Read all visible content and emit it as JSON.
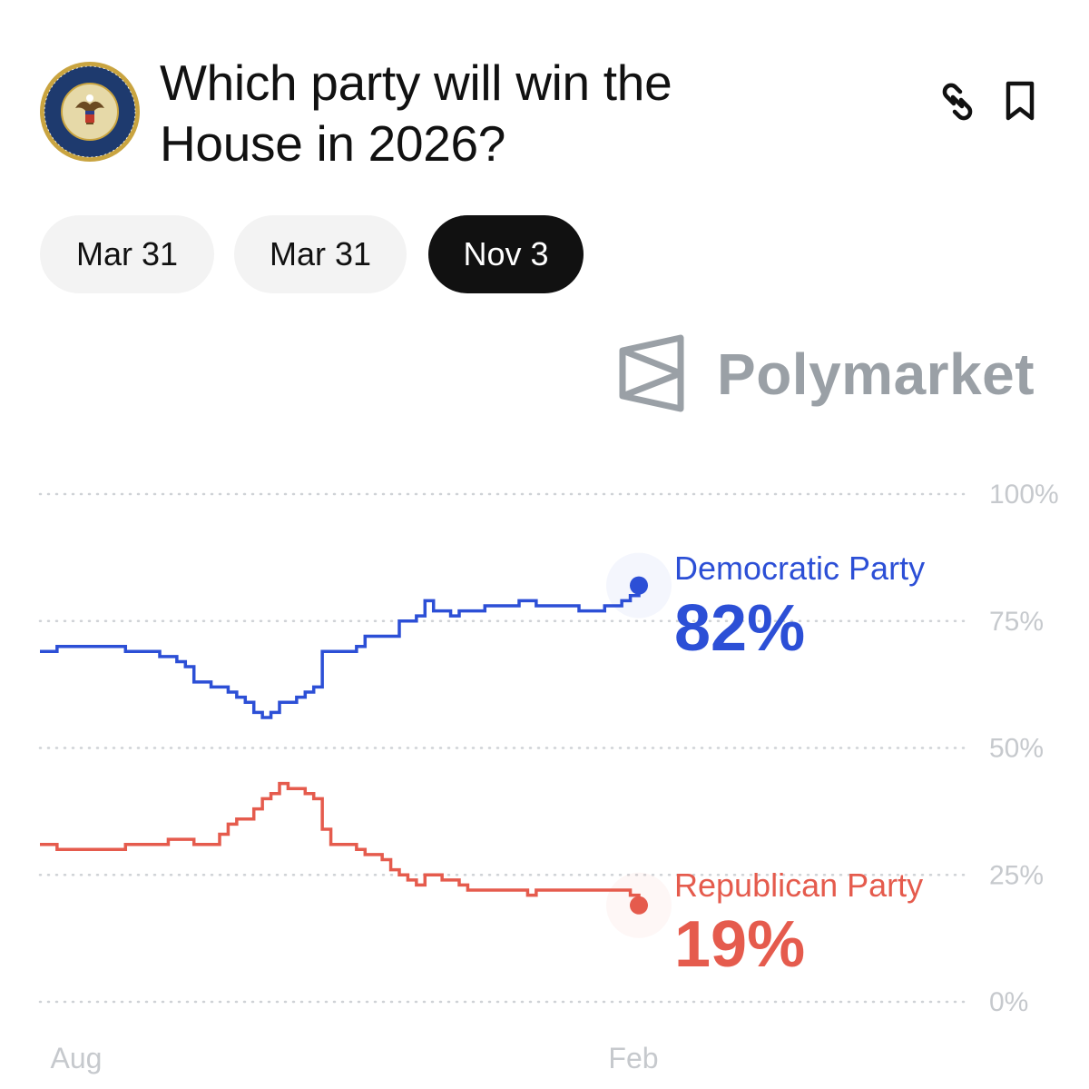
{
  "header": {
    "title_line1": "Which party will win the",
    "title_line2": "House in 2026?",
    "seal_text": "U.S. HOUSE OF REPRESENTATIVES",
    "seal_icon": "us-house-seal-icon",
    "link_icon": "link-icon",
    "bookmark_icon": "bookmark-icon"
  },
  "date_tabs": [
    {
      "label": "Mar 31",
      "active": false
    },
    {
      "label": "Mar 31",
      "active": false
    },
    {
      "label": "Nov 3",
      "active": true
    }
  ],
  "brand": {
    "name": "Polymarket",
    "icon": "polymarket-logo-icon",
    "color": "#9aa0a6"
  },
  "chart_data": {
    "type": "line",
    "x_ticks": [
      "Aug",
      "Feb"
    ],
    "y_ticks": [
      "100%",
      "75%",
      "50%",
      "25%",
      "0%"
    ],
    "ylim": [
      0,
      100
    ],
    "grid": "dotted horizontal",
    "y_axis_side": "right",
    "series": [
      {
        "name": "Democratic Party",
        "label": "82%",
        "color": "#2c4fd6",
        "values": [
          69,
          69,
          70,
          70,
          70,
          70,
          70,
          70,
          70,
          70,
          69,
          69,
          69,
          69,
          68,
          68,
          67,
          66,
          63,
          63,
          62,
          62,
          61,
          60,
          59,
          57,
          56,
          57,
          59,
          59,
          60,
          61,
          62,
          69,
          69,
          69,
          69,
          70,
          72,
          72,
          72,
          72,
          75,
          75,
          76,
          79,
          77,
          77,
          76,
          77,
          77,
          77,
          78,
          78,
          78,
          78,
          79,
          79,
          78,
          78,
          78,
          78,
          78,
          77,
          77,
          77,
          78,
          78,
          79,
          80,
          82
        ]
      },
      {
        "name": "Republican Party",
        "label": "19%",
        "color": "#e55b4d",
        "values": [
          31,
          31,
          30,
          30,
          30,
          30,
          30,
          30,
          30,
          30,
          31,
          31,
          31,
          31,
          31,
          32,
          32,
          32,
          31,
          31,
          31,
          33,
          35,
          36,
          36,
          38,
          40,
          41,
          43,
          42,
          42,
          41,
          40,
          34,
          31,
          31,
          31,
          30,
          29,
          29,
          28,
          26,
          25,
          24,
          23,
          25,
          25,
          24,
          24,
          23,
          22,
          22,
          22,
          22,
          22,
          22,
          22,
          21,
          22,
          22,
          22,
          22,
          22,
          22,
          22,
          22,
          22,
          22,
          22,
          21,
          19
        ]
      }
    ]
  }
}
